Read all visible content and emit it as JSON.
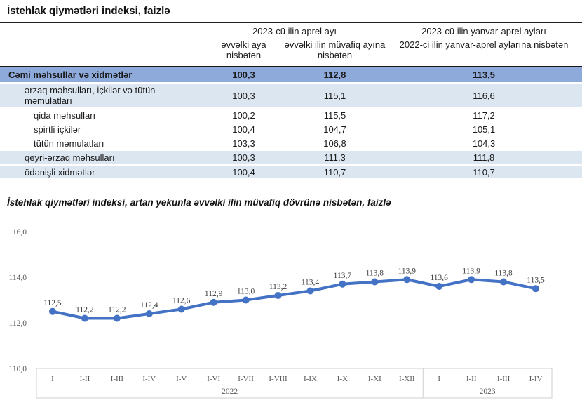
{
  "page": {
    "title": "İstehlak qiymətləri indeksi, faizlə",
    "chart_title": "İstehlak qiymətləri indeksi, artan yekunla əvvəlki ilin müvafiq dövrünə nisbətən, faizlə"
  },
  "table": {
    "group_header": "2023-cü ilin aprel ayı",
    "subheaders": [
      "əvvəlki aya nisbətən",
      "əvvəlki ilin müvafiq ayına nisbətən"
    ],
    "col4": {
      "line1": "2023-cü ilin yanvar-aprel ayları",
      "line2": "2022-ci ilin yanvar-aprel aylarına nisbətən"
    },
    "rows": [
      {
        "label": "Cəmi məhsullar və xidmətlər",
        "v1": "100,3",
        "v2": "112,8",
        "v3": "113,5"
      },
      {
        "label": "ərzaq məhsulları, içkilər və tütün məmulatları",
        "v1": "100,3",
        "v2": "115,1",
        "v3": "116,6"
      },
      {
        "label": "qida məhsulları",
        "v1": "100,2",
        "v2": "115,5",
        "v3": "117,2"
      },
      {
        "label": "spirtli içkilər",
        "v1": "100,4",
        "v2": "104,7",
        "v3": "105,1"
      },
      {
        "label": "tütün məmulatları",
        "v1": "103,3",
        "v2": "106,8",
        "v3": "104,3"
      },
      {
        "label": "qeyri-ərzaq məhsulları",
        "v1": "100,3",
        "v2": "111,3",
        "v3": "111,8"
      },
      {
        "label": "ödənişli xidmətlər",
        "v1": "100,4",
        "v2": "110,7",
        "v3": "110,7"
      }
    ]
  },
  "chart_data": {
    "type": "line",
    "title": "İstehlak qiymətləri indeksi, artan yekunla əvvəlki ilin müvafiq dövrünə nisbətən, faizlə",
    "categories": [
      "I",
      "I-II",
      "I-III",
      "I-IV",
      "I-V",
      "I-VI",
      "I-VII",
      "I-VIII",
      "I-IX",
      "I-X",
      "I-XI",
      "I-XII",
      "I",
      "I-II",
      "I-III",
      "I-IV"
    ],
    "values": [
      112.5,
      112.2,
      112.2,
      112.4,
      112.6,
      112.9,
      113.0,
      113.2,
      113.4,
      113.7,
      113.8,
      113.9,
      113.6,
      113.9,
      113.8,
      113.5
    ],
    "year_groups": [
      {
        "label": "2022",
        "count": 12
      },
      {
        "label": "2023",
        "count": 4
      }
    ],
    "xlabel": "",
    "ylabel": "",
    "ylim": [
      110,
      116
    ],
    "yticks": [
      110,
      112,
      114,
      116
    ],
    "grid": false,
    "legend": false,
    "decimal_separator": ",",
    "line_color": "#4472C4",
    "axis_box_color": "#cfcfcf"
  }
}
